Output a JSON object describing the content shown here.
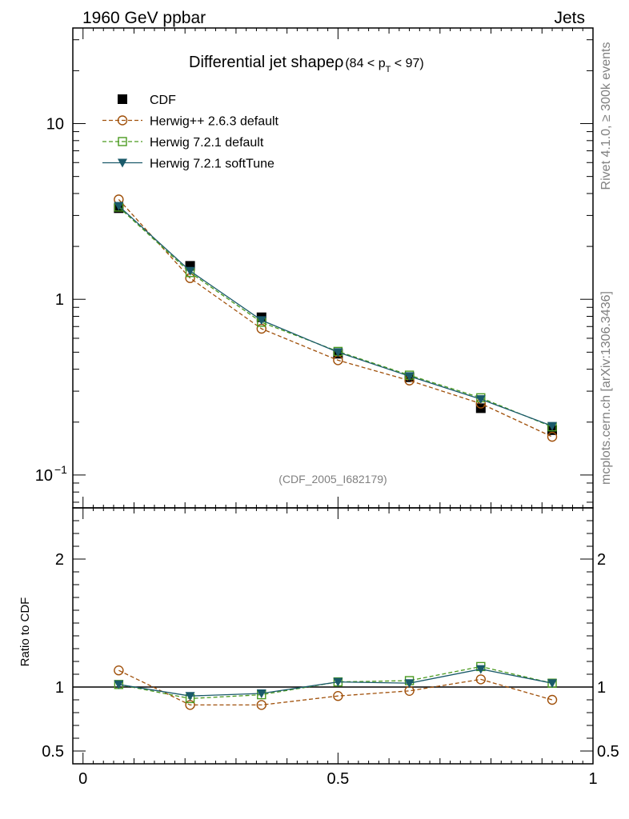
{
  "header": {
    "left": "1960 GeV ppbar",
    "right": "Jets"
  },
  "side_labels": {
    "top": "Rivet 4.1.0, ≥ 300k events",
    "bottom": "mcplots.cern.ch [arXiv:1306.3436]"
  },
  "chart_data": {
    "type": "line",
    "title": "Differential jet shapeρ",
    "title_range": {
      "prefix": "(84 < p",
      "sub": "T",
      "suffix": " < 97)"
    },
    "watermark": "(CDF_2005_I682179)",
    "x": [
      0.07,
      0.21,
      0.35,
      0.5,
      0.64,
      0.78,
      0.92
    ],
    "xlim": [
      -0.02,
      1.0
    ],
    "x_ticks": [
      {
        "v": 0,
        "label": "0"
      },
      {
        "v": 0.5,
        "label": "0.5"
      },
      {
        "v": 1,
        "label": "1"
      }
    ],
    "main": {
      "yscale": "log",
      "ylim": [
        0.065,
        35
      ],
      "y_ticks": [
        {
          "v": 0.1,
          "label": "10",
          "sup": "−1"
        },
        {
          "v": 1,
          "label": "1"
        },
        {
          "v": 10,
          "label": "10"
        }
      ]
    },
    "ratio": {
      "ylabel": "Ratio to CDF",
      "ylim": [
        0.4,
        2.4
      ],
      "reference_line": 1,
      "y_ticks": [
        {
          "v": 0.5,
          "label": "0.5"
        },
        {
          "v": 1,
          "label": "1"
        },
        {
          "v": 2,
          "label": "2"
        }
      ]
    },
    "series": [
      {
        "name": "CDF",
        "color": "#000000",
        "marker": "square-filled",
        "line": "none",
        "values": [
          3.3,
          1.55,
          0.79,
          0.49,
          0.36,
          0.24,
          0.18
        ]
      },
      {
        "name": "Herwig++ 2.6.3 default",
        "color": "#a0500a",
        "marker": "circle-open",
        "line": "dashed",
        "values": [
          3.7,
          1.32,
          0.68,
          0.45,
          0.345,
          0.255,
          0.165
        ],
        "ratio": [
          1.13,
          0.86,
          0.86,
          0.93,
          0.97,
          1.06,
          0.9
        ]
      },
      {
        "name": "Herwig 7.2.1 default",
        "color": "#4a9a1e",
        "marker": "square-open",
        "line": "dashed",
        "values": [
          3.35,
          1.42,
          0.74,
          0.505,
          0.37,
          0.275,
          0.188
        ],
        "ratio": [
          1.02,
          0.91,
          0.94,
          1.04,
          1.05,
          1.16,
          1.03
        ]
      },
      {
        "name": "Herwig 7.2.1 softTune",
        "color": "#1a5a6a",
        "marker": "triangle-down-filled",
        "line": "solid",
        "values": [
          3.4,
          1.45,
          0.76,
          0.5,
          0.365,
          0.27,
          0.19
        ],
        "ratio": [
          1.02,
          0.93,
          0.95,
          1.04,
          1.03,
          1.14,
          1.03
        ]
      }
    ]
  }
}
